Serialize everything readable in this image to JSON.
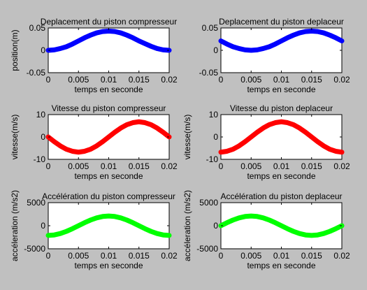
{
  "chart_data": [
    {
      "type": "line",
      "title": "Deplacement du piston compresseur",
      "xlabel": "temps en seconde",
      "ylabel": "position(m)",
      "xlim": [
        0,
        0.02
      ],
      "ylim": [
        -0.05,
        0.05
      ],
      "xticks": [
        "0",
        "0.005",
        "0.01",
        "0.015",
        "0.02"
      ],
      "yticks": [
        "0.05",
        "0",
        "-0.05"
      ],
      "ytick_values": [
        0.05,
        0,
        -0.05
      ],
      "grid": false,
      "series": [
        {
          "color": "#0000ff",
          "x": [
            0,
            0.001,
            0.002,
            0.003,
            0.004,
            0.005,
            0.006,
            0.007,
            0.008,
            0.009,
            0.01,
            0.011,
            0.012,
            0.013,
            0.014,
            0.015,
            0.016,
            0.017,
            0.018,
            0.019,
            0.02
          ],
          "y": [
            0.0,
            0.001,
            0.004,
            0.008,
            0.014,
            0.021,
            0.028,
            0.034,
            0.039,
            0.042,
            0.043,
            0.042,
            0.039,
            0.034,
            0.028,
            0.021,
            0.015,
            0.009,
            0.004,
            0.001,
            0.0
          ]
        }
      ]
    },
    {
      "type": "line",
      "title": "Deplacement du piston deplaceur",
      "xlabel": "temps en seconde",
      "ylabel": "",
      "xlim": [
        0,
        0.02
      ],
      "ylim": [
        -0.05,
        0.05
      ],
      "xticks": [
        "0",
        "0.005",
        "0.01",
        "0.015",
        "0.02"
      ],
      "yticks": [
        "0.05",
        "0",
        "-0.05"
      ],
      "ytick_values": [
        0.05,
        0,
        -0.05
      ],
      "grid": false,
      "series": [
        {
          "color": "#0000ff",
          "x": [
            0,
            0.001,
            0.002,
            0.003,
            0.004,
            0.005,
            0.006,
            0.007,
            0.008,
            0.009,
            0.01,
            0.011,
            0.012,
            0.013,
            0.014,
            0.015,
            0.016,
            0.017,
            0.018,
            0.019,
            0.02
          ],
          "y": [
            0.021,
            0.014,
            0.008,
            0.004,
            0.001,
            0.0,
            0.001,
            0.004,
            0.008,
            0.014,
            0.021,
            0.028,
            0.034,
            0.039,
            0.042,
            0.043,
            0.042,
            0.039,
            0.034,
            0.028,
            0.021
          ]
        }
      ]
    },
    {
      "type": "line",
      "title": "Vitesse du piston compresseur",
      "xlabel": "temps en seconde",
      "ylabel": "vitesse(m/s)",
      "xlim": [
        0,
        0.02
      ],
      "ylim": [
        -10,
        10
      ],
      "xticks": [
        "0",
        "0.005",
        "0.01",
        "0.015",
        "0.02"
      ],
      "yticks": [
        "10",
        "0",
        "-10"
      ],
      "ytick_values": [
        10,
        0,
        -10
      ],
      "grid": false,
      "series": [
        {
          "color": "#ff0000",
          "x": [
            0,
            0.001,
            0.002,
            0.003,
            0.004,
            0.005,
            0.006,
            0.007,
            0.008,
            0.009,
            0.01,
            0.011,
            0.012,
            0.013,
            0.014,
            0.015,
            0.016,
            0.017,
            0.018,
            0.019,
            0.02
          ],
          "y": [
            0.0,
            -2.1,
            -4.0,
            -5.5,
            -6.4,
            -6.8,
            -6.4,
            -5.5,
            -4.0,
            -2.1,
            0.0,
            2.1,
            4.0,
            5.5,
            6.4,
            6.8,
            6.4,
            5.5,
            4.0,
            2.1,
            0.0
          ]
        }
      ]
    },
    {
      "type": "line",
      "title": "Vitesse du piston deplaceur",
      "xlabel": "temps en seconde",
      "ylabel": "vitesse(m/s)",
      "xlim": [
        0,
        0.02
      ],
      "ylim": [
        -10,
        10
      ],
      "xticks": [
        "0",
        "0.005",
        "0.01",
        "0.015",
        "0.02"
      ],
      "yticks": [
        "10",
        "0",
        "-10"
      ],
      "ytick_values": [
        10,
        0,
        -10
      ],
      "grid": false,
      "series": [
        {
          "color": "#ff0000",
          "x": [
            0,
            0.001,
            0.002,
            0.003,
            0.004,
            0.005,
            0.006,
            0.007,
            0.008,
            0.009,
            0.01,
            0.011,
            0.012,
            0.013,
            0.014,
            0.015,
            0.016,
            0.017,
            0.018,
            0.019,
            0.02
          ],
          "y": [
            -6.8,
            -6.4,
            -5.5,
            -4.0,
            -2.1,
            0.0,
            2.1,
            4.0,
            5.5,
            6.4,
            6.8,
            6.4,
            5.5,
            4.0,
            2.1,
            0.0,
            -2.1,
            -4.0,
            -5.5,
            -6.4,
            -6.8
          ]
        }
      ]
    },
    {
      "type": "line",
      "title": "Accélération du piston compresseur",
      "xlabel": "temps en seconde",
      "ylabel": "accéleration (m/s2)",
      "xlim": [
        0,
        0.02
      ],
      "ylim": [
        -5000,
        5000
      ],
      "xticks": [
        "0",
        "0.005",
        "0.01",
        "0.015",
        "0.02"
      ],
      "yticks": [
        "5000",
        "0",
        "-5000"
      ],
      "ytick_values": [
        5000,
        0,
        -5000
      ],
      "grid": false,
      "series": [
        {
          "color": "#00ff00",
          "x": [
            0,
            0.001,
            0.002,
            0.003,
            0.004,
            0.005,
            0.006,
            0.007,
            0.008,
            0.009,
            0.01,
            0.011,
            0.012,
            0.013,
            0.014,
            0.015,
            0.016,
            0.017,
            0.018,
            0.019,
            0.02
          ],
          "y": [
            -2100,
            -2000,
            -1700,
            -1230,
            -650,
            0,
            650,
            1230,
            1700,
            2000,
            2100,
            2000,
            1700,
            1230,
            650,
            0,
            -650,
            -1230,
            -1700,
            -2000,
            -2100
          ]
        }
      ]
    },
    {
      "type": "line",
      "title": "Accélération du piston deplaceur",
      "xlabel": "temps en seconde",
      "ylabel": "accéleration (m/s2)",
      "xlim": [
        0,
        0.02
      ],
      "ylim": [
        -5000,
        5000
      ],
      "xticks": [
        "0",
        "0.005",
        "0.01",
        "0.015",
        "0.02"
      ],
      "yticks": [
        "5000",
        "0",
        "-5000"
      ],
      "ytick_values": [
        5000,
        0,
        -5000
      ],
      "grid": false,
      "series": [
        {
          "color": "#00ff00",
          "x": [
            0,
            0.001,
            0.002,
            0.003,
            0.004,
            0.005,
            0.006,
            0.007,
            0.008,
            0.009,
            0.01,
            0.011,
            0.012,
            0.013,
            0.014,
            0.015,
            0.016,
            0.017,
            0.018,
            0.019,
            0.02
          ],
          "y": [
            0,
            650,
            1230,
            1700,
            2000,
            2100,
            2000,
            1700,
            1230,
            650,
            0,
            -650,
            -1230,
            -1700,
            -2000,
            -2100,
            -2000,
            -1700,
            -1230,
            -650,
            0
          ]
        }
      ]
    }
  ]
}
